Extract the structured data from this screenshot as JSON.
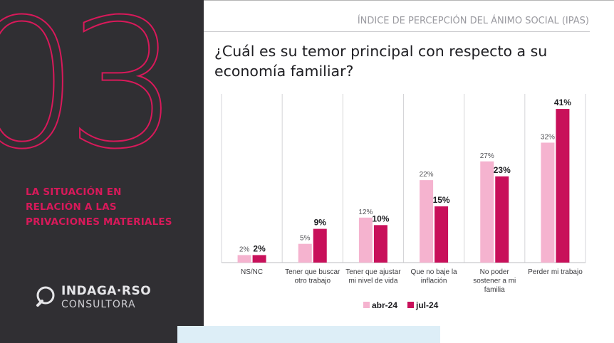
{
  "section": {
    "number": "03",
    "title_lines": [
      "LA SITUACIÓN EN",
      "RELACIÓN A LAS",
      "PRIVACIONES MATERIALES"
    ]
  },
  "brand": {
    "name": "INDAGA·RSO",
    "sub": "CONSULTORA"
  },
  "header": {
    "label": "ÍNDICE DE PERCEPCIÓN DEL ÁNIMO SOCIAL (IPAS)",
    "question": "¿Cuál es su temor principal con respecto a su economía familiar?"
  },
  "colors": {
    "panel": "#302f33",
    "accent": "#d8195a",
    "abr": "#f5b3cf",
    "jul": "#c8105a"
  },
  "chart_data": {
    "type": "bar",
    "categories": [
      "NS/NC",
      "Tener que buscar otro trabajo",
      "Tener que ajustar mi nivel de vida",
      "Que no baje la inflación",
      "No poder sostener a mi familia",
      "Perder mi trabajo"
    ],
    "category_lines": [
      [
        "NS/NC"
      ],
      [
        "Tener que buscar",
        "otro trabajo"
      ],
      [
        "Tener que ajustar",
        "mi nivel de vida"
      ],
      [
        "Que no baje la",
        "inflación"
      ],
      [
        "No poder",
        "sostener a mi",
        "familia"
      ],
      [
        "Perder mi trabajo"
      ]
    ],
    "series": [
      {
        "name": "abr-24",
        "values": [
          2,
          5,
          12,
          22,
          27,
          32
        ],
        "labels": [
          "2%",
          "5%",
          "12%",
          "22%",
          "27%",
          "32%"
        ]
      },
      {
        "name": "jul-24",
        "values": [
          2,
          9,
          10,
          15,
          23,
          41
        ],
        "labels": [
          "2%",
          "9%",
          "10%",
          "15%",
          "23%",
          "41%"
        ]
      }
    ],
    "ylim": [
      0,
      45
    ],
    "legend": "bottom",
    "grid": false
  }
}
